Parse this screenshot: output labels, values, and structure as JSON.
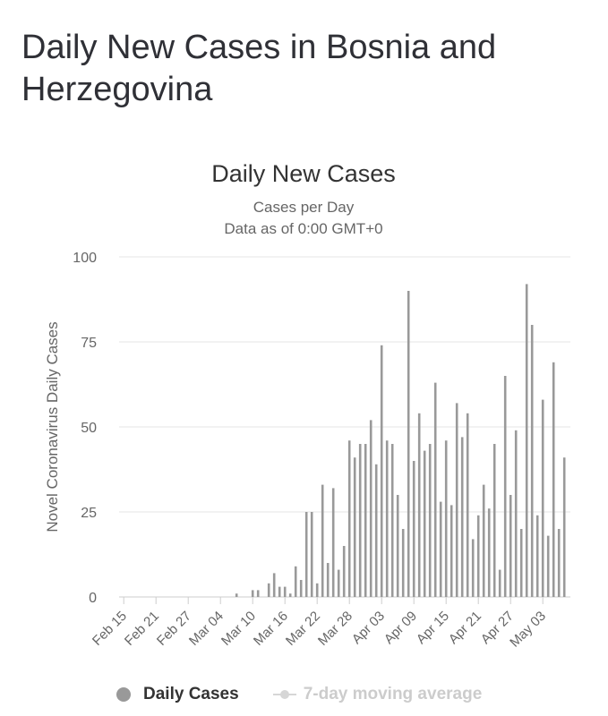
{
  "page": {
    "title": "Daily New Cases in Bosnia and Herzegovina"
  },
  "chart_data": {
    "type": "bar",
    "title": "Daily New Cases",
    "subtitle_lines": [
      "Cases per Day",
      "Data as of 0:00 GMT+0"
    ],
    "ylabel": "Novel Coronavirus Daily Cases",
    "xlabel": "",
    "ylim": [
      0,
      100
    ],
    "yticks": [
      0,
      25,
      50,
      75,
      100
    ],
    "grid": true,
    "legend_position": "bottom",
    "start_date": "Feb 15",
    "x_tick_labels": [
      "Feb 15",
      "Feb 21",
      "Feb 27",
      "Mar 04",
      "Mar 10",
      "Mar 16",
      "Mar 22",
      "Mar 28",
      "Apr 03",
      "Apr 09",
      "Apr 15",
      "Apr 21",
      "Apr 27",
      "May 03"
    ],
    "series": [
      {
        "name": "Daily Cases",
        "color": "#999999",
        "values": [
          0,
          0,
          0,
          0,
          0,
          0,
          0,
          0,
          0,
          0,
          0,
          0,
          0,
          0,
          0,
          0,
          0,
          0,
          0,
          0,
          0,
          1,
          0,
          0,
          2,
          2,
          0,
          4,
          7,
          3,
          3,
          1,
          9,
          5,
          25,
          25,
          4,
          33,
          10,
          32,
          8,
          15,
          46,
          41,
          45,
          45,
          52,
          39,
          74,
          46,
          45,
          30,
          20,
          90,
          40,
          54,
          43,
          45,
          63,
          28,
          46,
          27,
          57,
          47,
          54,
          17,
          24,
          33,
          26,
          45,
          8,
          65,
          30,
          49,
          20,
          92,
          80,
          24,
          58,
          18,
          69,
          20,
          41
        ]
      },
      {
        "name": "7-day moving average",
        "color": "#d6d6d6",
        "values": []
      }
    ]
  },
  "legend": {
    "item1": "Daily Cases",
    "item2": "7-day moving average"
  }
}
